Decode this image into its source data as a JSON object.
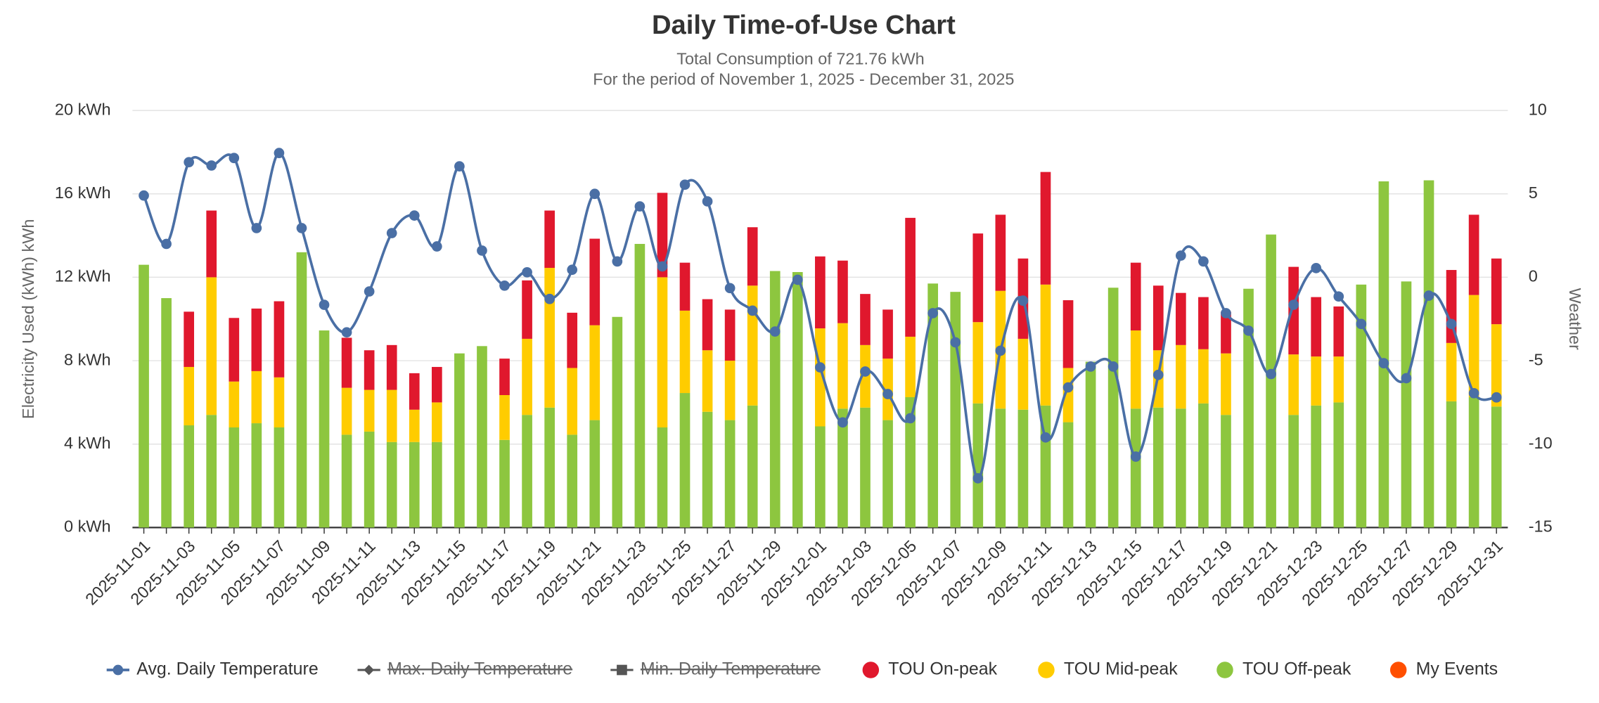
{
  "chart_data": {
    "type": "bar",
    "title": "Daily Time-of-Use Chart",
    "subtitle": [
      "Total Consumption of 721.76 kWh",
      "For the period of November 1, 2025 - December 31, 2025"
    ],
    "ylabel": "Electricity Used (kWh) kWh",
    "y2label": "Weather",
    "categories": [
      "2025-11-01",
      null,
      "2025-11-03",
      null,
      "2025-11-05",
      null,
      "2025-11-07",
      null,
      "2025-11-09",
      null,
      "2025-11-11",
      null,
      "2025-11-13",
      null,
      "2025-11-15",
      null,
      "2025-11-17",
      null,
      "2025-11-19",
      null,
      "2025-11-21",
      null,
      "2025-11-23",
      null,
      "2025-11-25",
      null,
      "2025-11-27",
      null,
      "2025-11-29",
      null,
      "2025-12-01",
      null,
      "2025-12-03",
      null,
      "2025-12-05",
      null,
      "2025-12-07",
      null,
      "2025-12-09",
      null,
      "2025-12-11",
      null,
      "2025-12-13",
      null,
      "2025-12-15",
      null,
      "2025-12-17",
      null,
      "2025-12-19",
      null,
      "2025-12-21",
      null,
      "2025-12-23",
      null,
      "2025-12-25",
      null,
      "2025-12-27",
      null,
      "2025-12-29",
      null,
      "2025-12-31"
    ],
    "ylim": [
      0,
      20
    ],
    "yticks": [
      {
        "value": 0,
        "label": "0 kWh"
      },
      {
        "value": 4,
        "label": "4 kWh"
      },
      {
        "value": 8,
        "label": "8 kWh"
      },
      {
        "value": 12,
        "label": "12 kWh"
      },
      {
        "value": 16,
        "label": "16 kWh"
      },
      {
        "value": 20,
        "label": "20 kWh"
      }
    ],
    "y2lim": [
      -15,
      10
    ],
    "y2ticks": [
      -15,
      -10,
      -5,
      0,
      5,
      10
    ],
    "grid": true,
    "stacked": true,
    "series": [
      {
        "name": "Avg. Daily Temperature",
        "type": "line",
        "axis": "y2",
        "color": "#4a6fa5",
        "values": [
          4.9,
          2.0,
          6.9,
          6.7,
          7.15,
          2.95,
          7.45,
          2.95,
          -1.65,
          -3.3,
          -0.85,
          2.65,
          3.7,
          1.85,
          6.65,
          1.6,
          -0.5,
          0.3,
          -1.3,
          0.45,
          5.0,
          0.95,
          4.25,
          0.65,
          5.55,
          4.55,
          -0.65,
          -2.0,
          -3.25,
          -0.15,
          -5.4,
          -8.7,
          -5.65,
          -7.0,
          -8.45,
          -2.15,
          -3.9,
          -12.05,
          -4.4,
          -1.4,
          -9.6,
          -6.6,
          -5.35,
          -5.35,
          -10.75,
          -5.85,
          1.3,
          0.95,
          -2.15,
          -3.2,
          -5.8,
          -1.65,
          0.55,
          -1.15,
          -2.8,
          -5.15,
          -6.05,
          -1.1,
          -2.8,
          -6.95,
          -7.2
        ]
      },
      {
        "name": "TOU On-peak",
        "color": "#e0182d",
        "values": [
          0,
          0,
          2.65,
          3.2,
          3.05,
          3.0,
          3.65,
          0,
          0,
          2.4,
          1.9,
          2.15,
          1.75,
          1.7,
          0,
          0,
          1.75,
          2.8,
          2.75,
          2.65,
          4.15,
          0,
          0,
          4.05,
          2.3,
          2.45,
          2.45,
          2.8,
          0,
          0,
          3.45,
          3.0,
          2.45,
          2.35,
          5.7,
          0,
          0,
          4.25,
          3.65,
          3.85,
          5.4,
          3.25,
          0,
          0,
          3.25,
          3.1,
          2.5,
          2.5,
          2.0,
          0,
          0,
          4.2,
          2.85,
          2.4,
          0,
          0,
          0,
          0,
          3.5,
          3.85,
          3.15
        ]
      },
      {
        "name": "TOU Mid-peak",
        "color": "#ffcc00",
        "values": [
          0,
          0,
          2.8,
          6.6,
          2.2,
          2.5,
          2.4,
          0,
          0,
          2.25,
          2.0,
          2.5,
          1.55,
          1.9,
          0,
          0,
          2.15,
          3.65,
          6.7,
          3.2,
          4.55,
          0,
          0,
          7.2,
          3.95,
          2.95,
          2.85,
          5.75,
          0,
          0,
          4.7,
          4.1,
          3.0,
          2.95,
          2.9,
          0,
          0,
          3.9,
          5.65,
          3.4,
          5.8,
          2.6,
          0,
          0,
          3.75,
          2.75,
          3.05,
          2.6,
          2.95,
          0,
          0,
          2.9,
          2.35,
          2.2,
          0,
          0,
          0,
          0,
          2.8,
          4.9,
          3.95
        ]
      },
      {
        "name": "TOU Off-peak",
        "color": "#8dc63f",
        "values": [
          12.6,
          11.0,
          4.9,
          5.4,
          4.8,
          5.0,
          4.8,
          13.2,
          9.45,
          4.45,
          4.6,
          4.1,
          4.1,
          4.1,
          8.35,
          8.7,
          4.2,
          5.4,
          5.75,
          4.45,
          5.15,
          10.1,
          13.6,
          4.8,
          6.45,
          5.55,
          5.15,
          5.85,
          12.3,
          12.25,
          4.85,
          5.7,
          5.75,
          5.15,
          6.25,
          11.7,
          11.3,
          5.95,
          5.7,
          5.65,
          5.85,
          5.05,
          7.95,
          11.5,
          5.7,
          5.75,
          5.7,
          5.95,
          5.4,
          11.45,
          14.05,
          5.4,
          5.85,
          6.0,
          11.65,
          16.6,
          11.8,
          16.65,
          6.05,
          6.25,
          5.8
        ]
      }
    ],
    "legend_hidden": [
      {
        "name": "Max. Daily Temperature",
        "color": "#555555",
        "marker": "diamond",
        "hidden": true
      },
      {
        "name": "Min. Daily Temperature",
        "color": "#555555",
        "marker": "square",
        "hidden": true
      },
      {
        "name": "My Events",
        "color": "#ff4f00",
        "marker": "circle",
        "hidden": false
      }
    ]
  }
}
